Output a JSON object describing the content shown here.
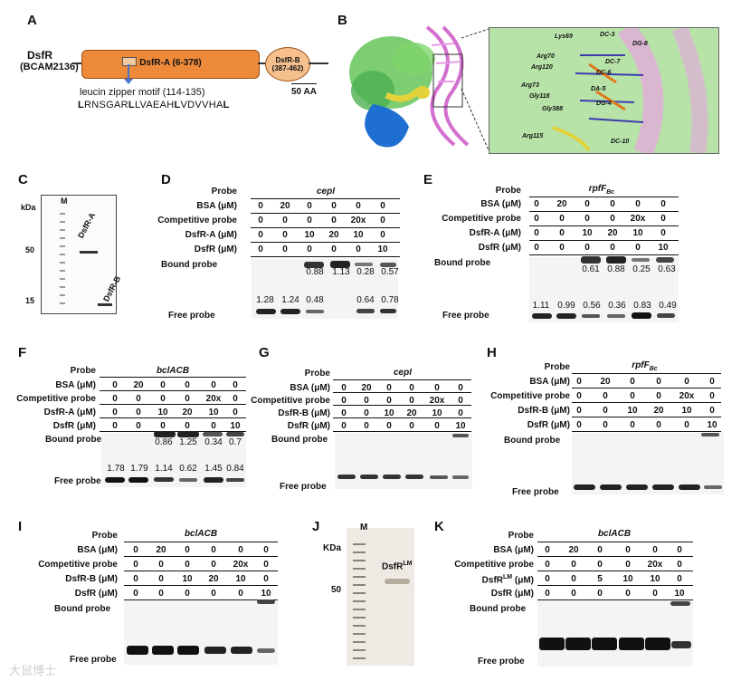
{
  "panels": {
    "A": "A",
    "B": "B",
    "C": "C",
    "D": "D",
    "E": "E",
    "F": "F",
    "G": "G",
    "H": "H",
    "I": "I",
    "J": "J",
    "K": "K"
  },
  "panelA": {
    "protein_name": "DsfR",
    "protein_id": "(BCAM2136)",
    "domain_a": "DsfR-A (6-378)",
    "domain_b_line1": "DsfR-B",
    "domain_b_line2": "(387-462)",
    "motif_label": "leucin zipper motif (114-135)",
    "motif_seq_parts": [
      "L",
      "RNSGAR",
      "L",
      "LVAEAH",
      "L",
      "VDVVHA",
      "L"
    ],
    "scale_bar": "50 AA"
  },
  "panelB": {
    "residues": [
      "Lys69",
      "Arg70",
      "Arg120",
      "Arg73",
      "Gly118",
      "Gly388",
      "Arg115"
    ],
    "nucleotides": [
      "DC-3",
      "DG-8",
      "DC-7",
      "DC-6",
      "DA-5",
      "DG-4",
      "DC-10"
    ]
  },
  "panelC": {
    "kda": "kDa",
    "marker": "M",
    "mw": [
      "50",
      "15"
    ],
    "lanes": [
      "DsfR-A",
      "DsfR-B"
    ]
  },
  "row_labels": {
    "probe": "Probe",
    "bsa": "BSA (μM)",
    "competitive": "Competitive probe",
    "dsfr_a": "DsfR-A (μM)",
    "dsfr_b": "DsfR-B (μM)",
    "dsfr_lm": "DsfR",
    "dsfr_lm_sup": "LM",
    "dsfr_lm_unit": " (μM)",
    "dsfr": "DsfR (μM)",
    "bound": "Bound probe",
    "free": "Free probe"
  },
  "probes": {
    "cepI": "cepI",
    "rpfF": "rpfF",
    "rpfF_sub": "Bc",
    "bclACB": "bclACB"
  },
  "emsa_D": {
    "bsa": [
      "0",
      "20",
      "0",
      "0",
      "0",
      "0"
    ],
    "comp": [
      "0",
      "0",
      "0",
      "0",
      "20x",
      "0"
    ],
    "protein": [
      "0",
      "0",
      "10",
      "20",
      "10",
      "0"
    ],
    "dsfr": [
      "0",
      "0",
      "0",
      "0",
      "0",
      "10"
    ],
    "bound_ratio": [
      "",
      "",
      "0.88",
      "1.13",
      "0.28",
      "0.57"
    ],
    "free_ratio": [
      "1.28",
      "1.24",
      "0.48",
      "",
      "0.64",
      "0.78"
    ]
  },
  "emsa_E": {
    "bsa": [
      "0",
      "20",
      "0",
      "0",
      "0",
      "0"
    ],
    "comp": [
      "0",
      "0",
      "0",
      "0",
      "20x",
      "0"
    ],
    "protein": [
      "0",
      "0",
      "10",
      "20",
      "10",
      "0"
    ],
    "dsfr": [
      "0",
      "0",
      "0",
      "0",
      "0",
      "10"
    ],
    "bound_ratio": [
      "",
      "",
      "0.61",
      "0.88",
      "0.25",
      "0.63"
    ],
    "free_ratio": [
      "1.11",
      "0.99",
      "0.56",
      "0.36",
      "0.83",
      "0.49"
    ]
  },
  "emsa_F": {
    "bsa": [
      "0",
      "20",
      "0",
      "0",
      "0",
      "0"
    ],
    "comp": [
      "0",
      "0",
      "0",
      "0",
      "20x",
      "0"
    ],
    "protein": [
      "0",
      "0",
      "10",
      "20",
      "10",
      "0"
    ],
    "dsfr": [
      "0",
      "0",
      "0",
      "0",
      "0",
      "10"
    ],
    "bound_ratio": [
      "",
      "",
      "0.86",
      "1.25",
      "0.34",
      "0.7"
    ],
    "free_ratio": [
      "1.78",
      "1.79",
      "1.14",
      "0.62",
      "1.45",
      "0.84"
    ]
  },
  "emsa_G": {
    "bsa": [
      "0",
      "20",
      "0",
      "0",
      "0",
      "0"
    ],
    "comp": [
      "0",
      "0",
      "0",
      "0",
      "20x",
      "0"
    ],
    "protein": [
      "0",
      "0",
      "10",
      "20",
      "10",
      "0"
    ],
    "dsfr": [
      "0",
      "0",
      "0",
      "0",
      "0",
      "10"
    ]
  },
  "emsa_H": {
    "bsa": [
      "0",
      "20",
      "0",
      "0",
      "0",
      "0"
    ],
    "comp": [
      "0",
      "0",
      "0",
      "0",
      "20x",
      "0"
    ],
    "protein": [
      "0",
      "0",
      "10",
      "20",
      "10",
      "0"
    ],
    "dsfr": [
      "0",
      "0",
      "0",
      "0",
      "0",
      "10"
    ]
  },
  "emsa_I": {
    "bsa": [
      "0",
      "20",
      "0",
      "0",
      "0",
      "0"
    ],
    "comp": [
      "0",
      "0",
      "0",
      "0",
      "20x",
      "0"
    ],
    "protein": [
      "0",
      "0",
      "10",
      "20",
      "10",
      "0"
    ],
    "dsfr": [
      "0",
      "0",
      "0",
      "0",
      "0",
      "10"
    ]
  },
  "emsa_K": {
    "bsa": [
      "0",
      "20",
      "0",
      "0",
      "0",
      "0"
    ],
    "comp": [
      "0",
      "0",
      "0",
      "0",
      "20x",
      "0"
    ],
    "protein": [
      "0",
      "0",
      "5",
      "10",
      "10",
      "0"
    ],
    "dsfr": [
      "0",
      "0",
      "0",
      "0",
      "0",
      "10"
    ]
  },
  "panelJ": {
    "marker": "M",
    "kda": "KDa",
    "mw": "50",
    "lane": "DsfR",
    "lane_sup": "LM"
  },
  "watermark": "大鼠博士"
}
